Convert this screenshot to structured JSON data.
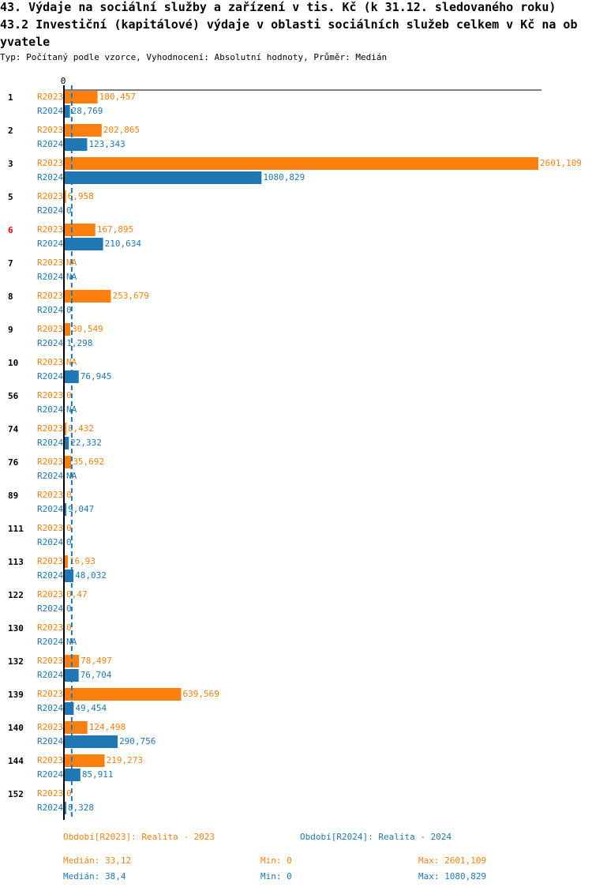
{
  "title_lines": [
    "43. Výdaje na sociální služby a zařízení v tis. Kč (k 31.12. sledovaného roku)",
    "43.2 Investiční (kapitálové) výdaje v oblasti sociálních služeb celkem v Kč na ob",
    "yvatele"
  ],
  "subtitle": "Typ: Počítaný podle vzorce, Vyhodnocení: Absolutní hodnoty, Průměr: Medián",
  "colors": {
    "R2023": "#ff7f0e",
    "R2024": "#1f77b4",
    "highlight": "#ff0000"
  },
  "chart_data": {
    "type": "bar",
    "orientation": "horizontal",
    "xlim": [
      0,
      2601.109
    ],
    "x_tick_labels": [
      "0"
    ],
    "series_names": [
      "R2023",
      "R2024"
    ],
    "highlighted_category": "6",
    "categories": [
      "1",
      "2",
      "3",
      "5",
      "6",
      "7",
      "8",
      "9",
      "10",
      "56",
      "74",
      "76",
      "89",
      "111",
      "113",
      "122",
      "130",
      "132",
      "139",
      "140",
      "144",
      "152"
    ],
    "series": [
      {
        "name": "R2023",
        "labels": [
          "180,457",
          "202,865",
          "2601,109",
          "6,958",
          "167,895",
          "NA",
          "253,679",
          "30,549",
          "NA",
          "0",
          "8,432",
          "35,692",
          "0",
          "0",
          "16,93",
          "0,47",
          "0",
          "78,497",
          "639,569",
          "124,498",
          "219,273",
          "0"
        ]
      },
      {
        "name": "R2024",
        "labels": [
          "28,769",
          "123,343",
          "1080,829",
          "0",
          "210,634",
          "NA",
          "0",
          "1,298",
          "76,945",
          "NA",
          "22,332",
          "NA",
          "9,047",
          "0",
          "48,032",
          "0",
          "NA",
          "76,704",
          "49,454",
          "290,756",
          "85,911",
          "8,328"
        ]
      }
    ],
    "median_line": 38.4
  },
  "legend": {
    "r2023": "Období[R2023]: Realita - 2023",
    "r2024": "Období[R2024]: Realita - 2024"
  },
  "stats": {
    "r2023": {
      "median": "Medián: 33,12",
      "min": "Min: 0",
      "max": "Max: 2601,109"
    },
    "r2024": {
      "median": "Medián: 38,4",
      "min": "Min: 0",
      "max": "Max: 1080,829"
    }
  }
}
